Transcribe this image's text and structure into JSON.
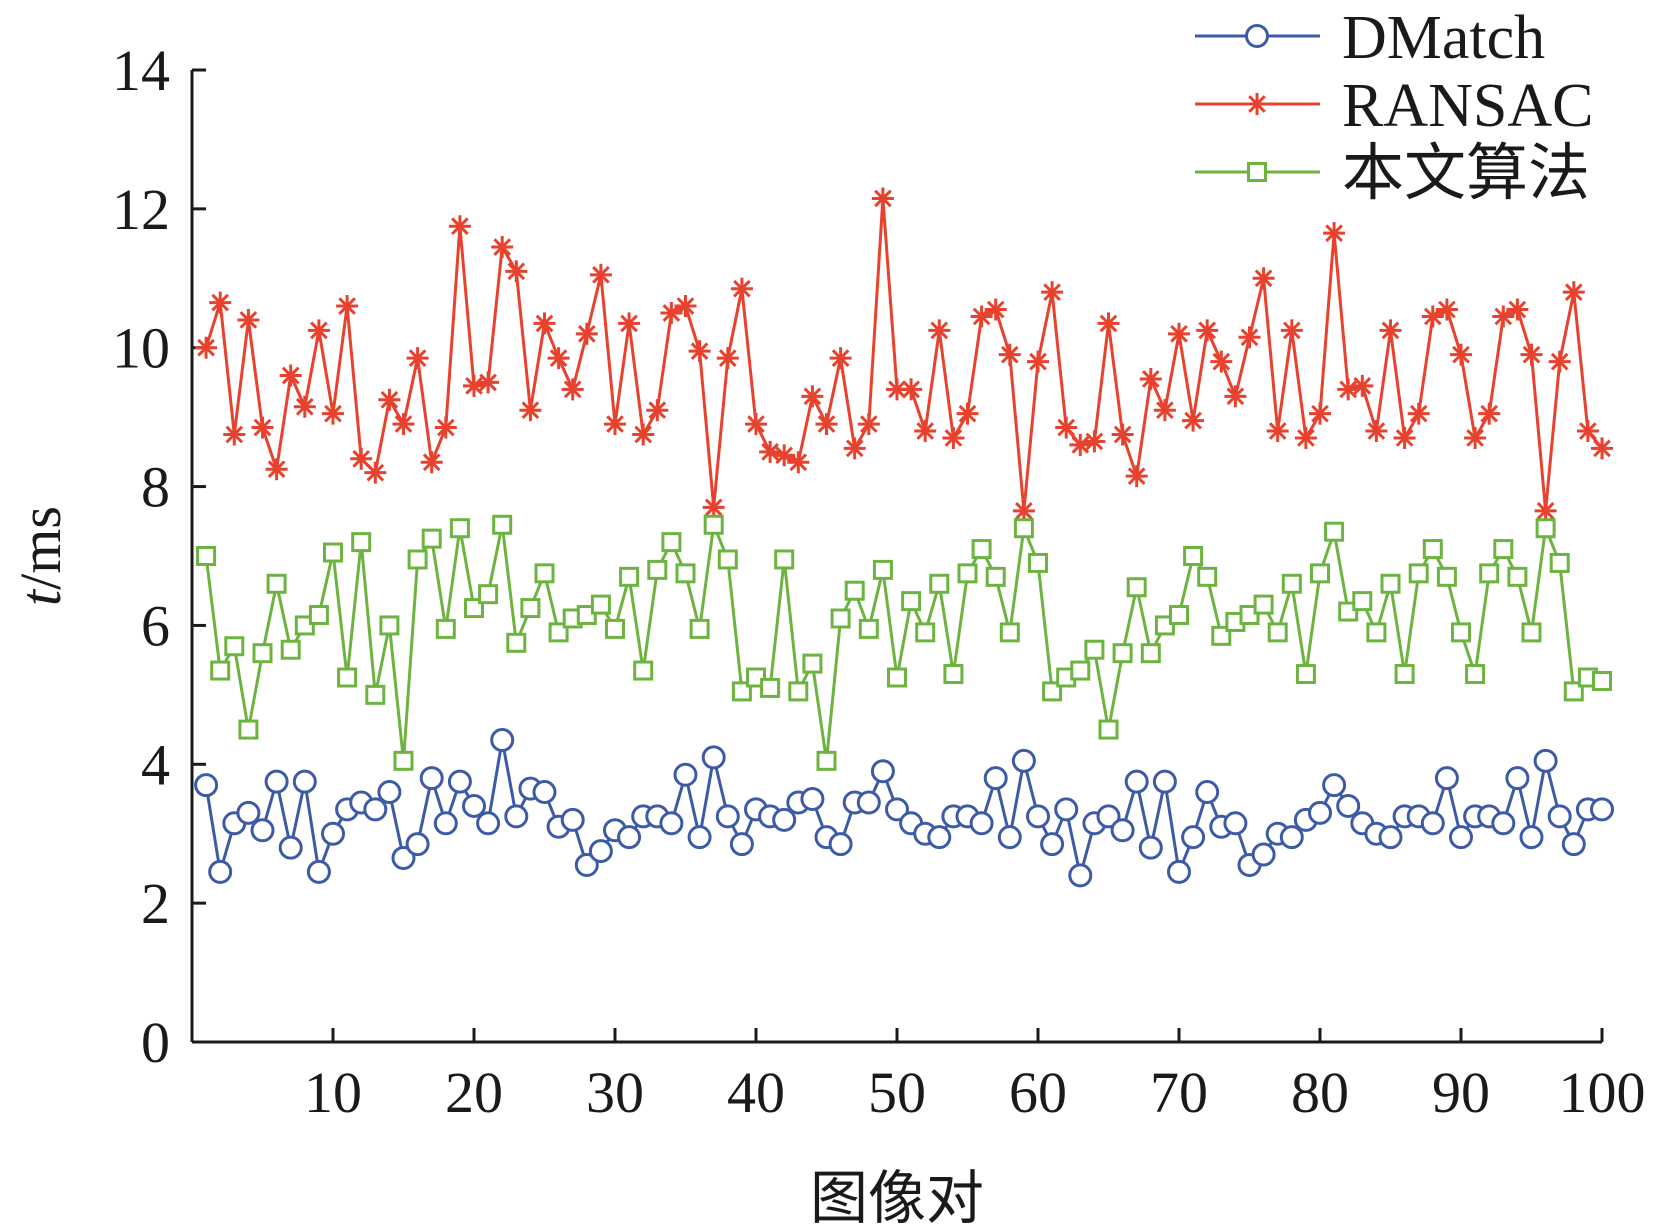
{
  "chart_data": {
    "type": "line",
    "xlabel": "图像对",
    "ylabel": "t/ms",
    "ylabel_italic": "t",
    "ylabel_unit": "/ms",
    "xlim": [
      0,
      100
    ],
    "ylim": [
      0,
      14
    ],
    "xticks": [
      10,
      20,
      30,
      40,
      50,
      60,
      70,
      80,
      90,
      100
    ],
    "yticks": [
      0,
      2,
      4,
      6,
      8,
      10,
      12,
      14
    ],
    "grid": false,
    "legend": "top-right",
    "x": [
      1,
      2,
      3,
      4,
      5,
      6,
      7,
      8,
      9,
      10,
      11,
      12,
      13,
      14,
      15,
      16,
      17,
      18,
      19,
      20,
      21,
      22,
      23,
      24,
      25,
      26,
      27,
      28,
      29,
      30,
      31,
      32,
      33,
      34,
      35,
      36,
      37,
      38,
      39,
      40,
      41,
      42,
      43,
      44,
      45,
      46,
      47,
      48,
      49,
      50,
      51,
      52,
      53,
      54,
      55,
      56,
      57,
      58,
      59,
      60,
      61,
      62,
      63,
      64,
      65,
      66,
      67,
      68,
      69,
      70,
      71,
      72,
      73,
      74,
      75,
      76,
      77,
      78,
      79,
      80,
      81,
      82,
      83,
      84,
      85,
      86,
      87,
      88,
      89,
      90,
      91,
      92,
      93,
      94,
      95,
      96,
      97,
      98,
      99,
      100
    ],
    "series": [
      {
        "name": "DMatch",
        "color": "#3c5aa6",
        "marker": "circle",
        "values": [
          3.7,
          2.45,
          3.15,
          3.3,
          3.05,
          3.75,
          2.8,
          3.75,
          2.45,
          3.0,
          3.35,
          3.45,
          3.35,
          3.6,
          2.65,
          2.85,
          3.8,
          3.15,
          3.75,
          3.4,
          3.15,
          4.35,
          3.25,
          3.65,
          3.6,
          3.1,
          3.2,
          2.55,
          2.75,
          3.05,
          2.95,
          3.25,
          3.25,
          3.15,
          3.85,
          2.95,
          4.1,
          3.25,
          2.85,
          3.35,
          3.25,
          3.2,
          3.45,
          3.5,
          2.95,
          2.85,
          3.45,
          3.45,
          3.9,
          3.35,
          3.15,
          3.0,
          2.95,
          3.25,
          3.25,
          3.15,
          3.8,
          2.95,
          4.05,
          3.25,
          2.85,
          3.35,
          2.4,
          3.15,
          3.25,
          3.05,
          3.75,
          2.8,
          3.75,
          2.45,
          2.95,
          3.6,
          3.1,
          3.15,
          2.55,
          2.7,
          3.0,
          2.95,
          3.2,
          3.3,
          3.7,
          3.4,
          3.15,
          3.0,
          2.95,
          3.25,
          3.25,
          3.15,
          3.8,
          2.95,
          3.25,
          3.25,
          3.15,
          3.8,
          2.95,
          4.05,
          3.25,
          2.85,
          3.35,
          3.35
        ]
      },
      {
        "name": "RANSAC",
        "color": "#e8412e",
        "marker": "asterisk",
        "values": [
          10.0,
          10.65,
          8.75,
          10.4,
          8.85,
          8.25,
          9.6,
          9.15,
          10.25,
          9.05,
          10.6,
          8.4,
          8.2,
          9.25,
          8.9,
          9.85,
          8.35,
          8.85,
          11.75,
          9.45,
          9.5,
          11.45,
          11.1,
          9.1,
          10.35,
          9.85,
          9.4,
          10.2,
          11.05,
          8.9,
          10.35,
          8.75,
          9.1,
          10.5,
          10.6,
          9.95,
          7.7,
          9.85,
          10.85,
          8.9,
          8.5,
          8.45,
          8.35,
          9.3,
          8.9,
          9.85,
          8.55,
          8.9,
          12.15,
          9.4,
          9.4,
          8.8,
          10.25,
          8.7,
          9.05,
          10.45,
          10.55,
          9.9,
          7.65,
          9.8,
          10.8,
          8.85,
          8.6,
          8.65,
          10.35,
          8.75,
          8.15,
          9.55,
          9.1,
          10.2,
          8.95,
          10.25,
          9.8,
          9.3,
          10.15,
          11.0,
          8.8,
          10.25,
          8.7,
          9.05,
          11.65,
          9.4,
          9.45,
          8.8,
          10.25,
          8.7,
          9.05,
          10.45,
          10.55,
          9.9,
          8.7,
          9.05,
          10.45,
          10.55,
          9.9,
          7.65,
          9.8,
          10.8,
          8.8,
          8.55
        ]
      },
      {
        "name": "本文算法",
        "color": "#6db33f",
        "marker": "square",
        "values": [
          7.0,
          5.35,
          5.7,
          4.5,
          5.6,
          6.6,
          5.65,
          6.0,
          6.15,
          7.05,
          5.25,
          7.2,
          5.0,
          6.0,
          4.05,
          6.95,
          7.25,
          5.95,
          7.4,
          6.25,
          6.45,
          7.45,
          5.75,
          6.25,
          6.75,
          5.9,
          6.1,
          6.15,
          6.3,
          5.95,
          6.7,
          5.35,
          6.8,
          7.2,
          6.75,
          5.95,
          7.45,
          6.95,
          5.05,
          5.25,
          5.1,
          6.95,
          5.05,
          5.45,
          4.05,
          6.1,
          6.5,
          5.95,
          6.8,
          5.25,
          6.35,
          5.9,
          6.6,
          5.3,
          6.75,
          7.1,
          6.7,
          5.9,
          7.4,
          6.9,
          5.05,
          5.25,
          5.35,
          5.65,
          4.5,
          5.6,
          6.55,
          5.6,
          6.0,
          6.15,
          7.0,
          6.7,
          5.85,
          6.05,
          6.15,
          6.3,
          5.9,
          6.6,
          5.3,
          6.75,
          7.35,
          6.2,
          6.35,
          5.9,
          6.6,
          5.3,
          6.75,
          7.1,
          6.7,
          5.9,
          5.3,
          6.75,
          7.1,
          6.7,
          5.9,
          7.4,
          6.9,
          5.05,
          5.25,
          5.2
        ]
      }
    ]
  }
}
